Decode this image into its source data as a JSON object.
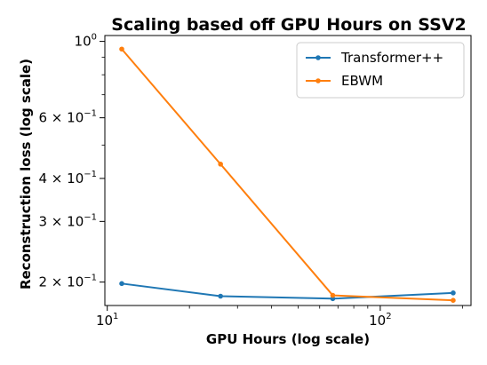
{
  "chart_data": {
    "type": "line",
    "title": "Scaling based off GPU Hours on SSV2",
    "xlabel": "GPU Hours (log scale)",
    "ylabel": "Reconstruction loss (log scale)",
    "xscale": "log",
    "yscale": "log",
    "xlim": [
      9.8,
      215
    ],
    "ylim": [
      0.171,
      1.04
    ],
    "grid": false,
    "legend_position": "top-right",
    "x_major_ticks": [
      {
        "value": 10,
        "base": "10",
        "exp": "1"
      },
      {
        "value": 100,
        "base": "10",
        "exp": "2"
      }
    ],
    "y_ticks": [
      {
        "value": 1.0,
        "label": "10",
        "mantissa": "",
        "exp": "0"
      },
      {
        "value": 0.6,
        "label": "10",
        "mantissa": "6 × ",
        "exp": "−1"
      },
      {
        "value": 0.4,
        "label": "10",
        "mantissa": "4 × ",
        "exp": "−1"
      },
      {
        "value": 0.3,
        "label": "10",
        "mantissa": "3 × ",
        "exp": "−1"
      },
      {
        "value": 0.2,
        "label": "10",
        "mantissa": "2 × ",
        "exp": "−1"
      }
    ],
    "series": [
      {
        "name": "Transformer++",
        "color": "#1f77b4",
        "x": [
          11.3,
          26,
          67,
          185
        ],
        "y": [
          0.198,
          0.182,
          0.179,
          0.186
        ]
      },
      {
        "name": "EBWM",
        "color": "#ff7f0e",
        "x": [
          11.3,
          26,
          67,
          185
        ],
        "y": [
          0.95,
          0.44,
          0.183,
          0.177
        ]
      }
    ]
  }
}
